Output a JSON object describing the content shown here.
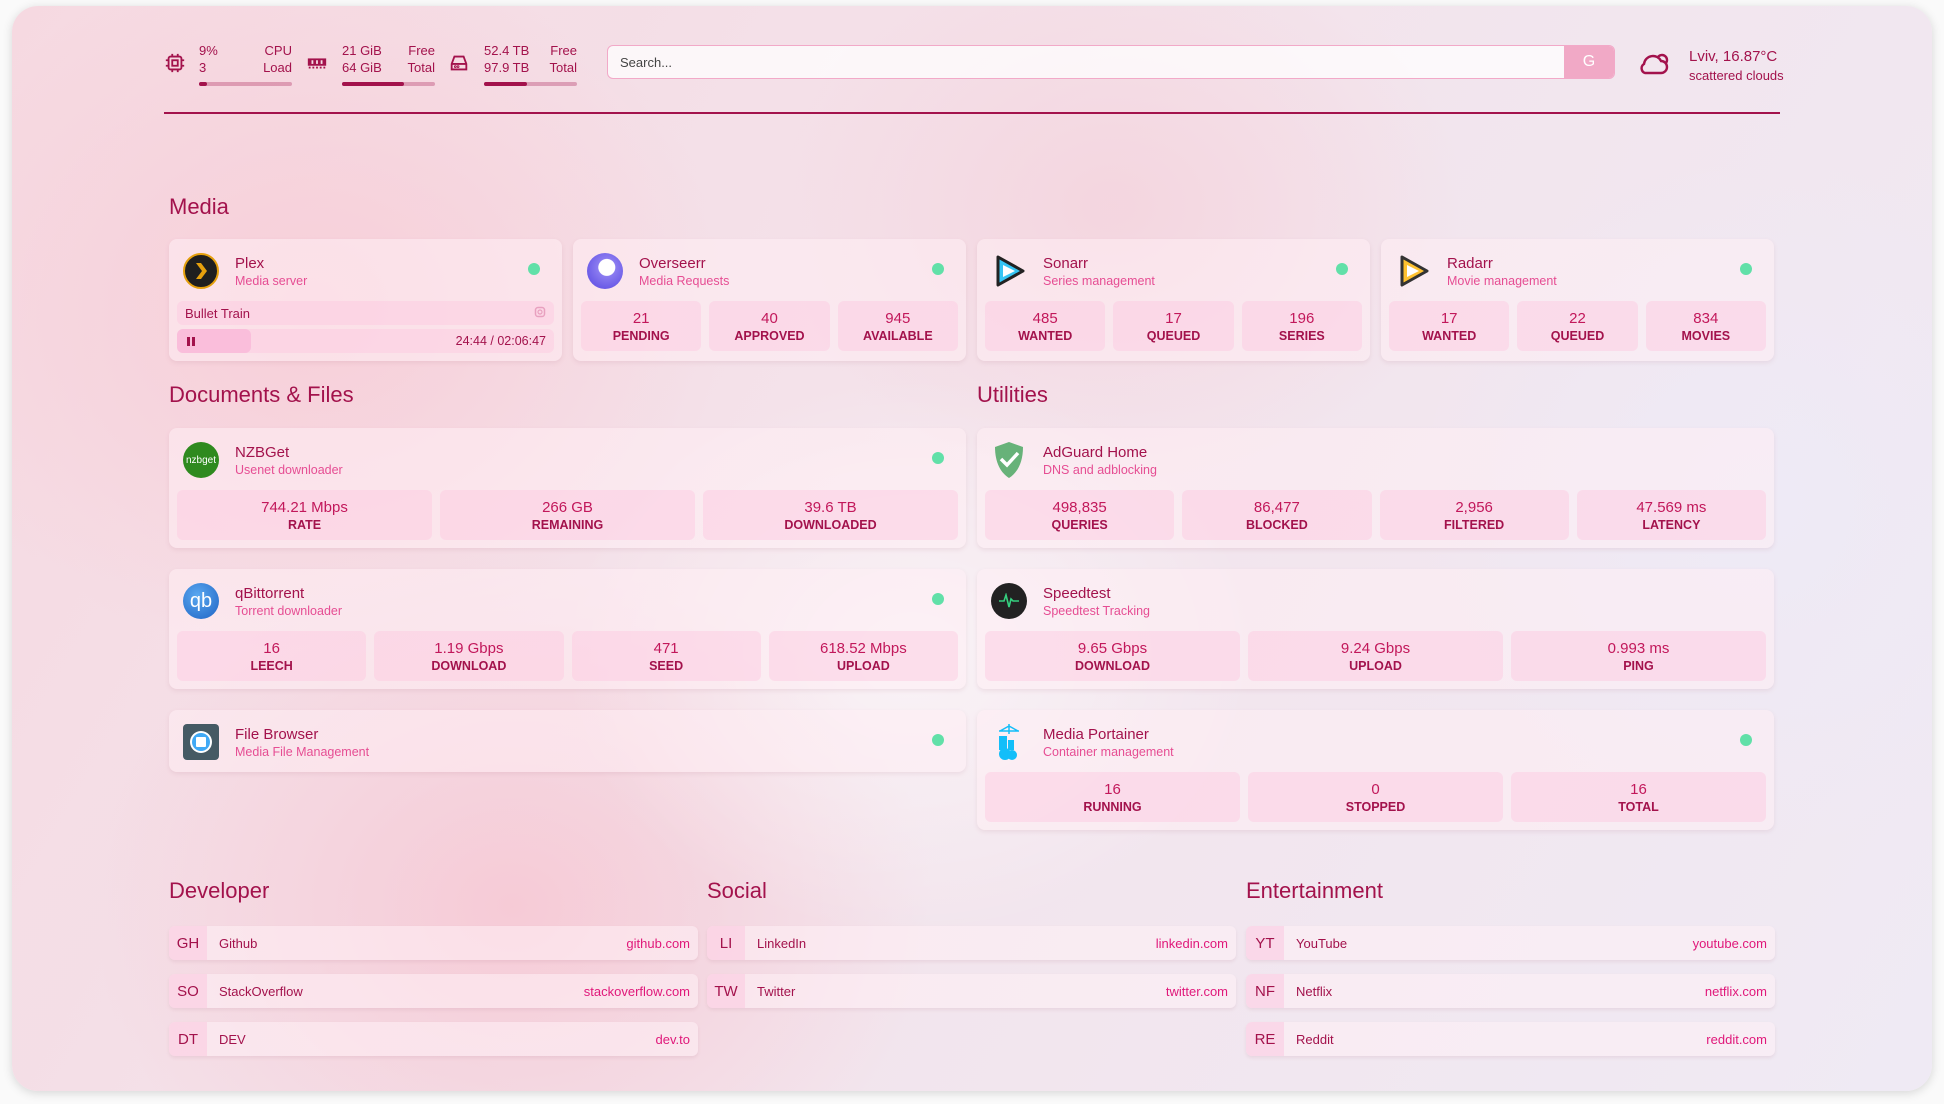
{
  "header": {
    "cpu": {
      "icon": "cpu-icon",
      "value": "9%",
      "cores": "3",
      "label1": "CPU",
      "label2": "Load",
      "fill": 0.09
    },
    "memory": {
      "icon": "memory-icon",
      "free": "21 GiB",
      "total": "64 GiB",
      "label1": "Free",
      "label2": "Total",
      "fill": 0.67
    },
    "disk": {
      "icon": "disk-icon",
      "free": "52.4 TB",
      "total": "97.9 TB",
      "label1": "Free",
      "label2": "Total",
      "fill": 0.46
    },
    "search": {
      "placeholder": "Search...",
      "button": "G"
    },
    "weather": {
      "icon": "cloud-sun-icon",
      "location_temp": "Lviv, 16.87°C",
      "condition": "scattered clouds"
    }
  },
  "colors": {
    "primary": "#a3124c",
    "accent": "#e64d93",
    "status_online": "#61e0a8"
  },
  "sections": {
    "media": {
      "title": "Media",
      "cards": [
        {
          "title": "Plex",
          "subtitle": "Media server",
          "icon": "plex-icon",
          "status": "online",
          "now_playing": "Bullet Train",
          "time": "24:44 / 02:06:47",
          "progress": 0.195
        },
        {
          "title": "Overseerr",
          "subtitle": "Media Requests",
          "icon": "overseerr-icon",
          "status": "online",
          "stats": [
            {
              "value": "21",
              "label": "PENDING"
            },
            {
              "value": "40",
              "label": "APPROVED"
            },
            {
              "value": "945",
              "label": "AVAILABLE"
            }
          ]
        },
        {
          "title": "Sonarr",
          "subtitle": "Series management",
          "icon": "sonarr-icon",
          "status": "online",
          "stats": [
            {
              "value": "485",
              "label": "WANTED"
            },
            {
              "value": "17",
              "label": "QUEUED"
            },
            {
              "value": "196",
              "label": "SERIES"
            }
          ]
        },
        {
          "title": "Radarr",
          "subtitle": "Movie management",
          "icon": "radarr-icon",
          "status": "online",
          "stats": [
            {
              "value": "17",
              "label": "WANTED"
            },
            {
              "value": "22",
              "label": "QUEUED"
            },
            {
              "value": "834",
              "label": "MOVIES"
            }
          ]
        }
      ]
    },
    "documents": {
      "title": "Documents & Files",
      "cards": [
        {
          "title": "NZBGet",
          "subtitle": "Usenet downloader",
          "icon": "nzbget-icon",
          "icon_text": "nzbget",
          "status": "online",
          "stats": [
            {
              "value": "744.21 Mbps",
              "label": "RATE"
            },
            {
              "value": "266 GB",
              "label": "REMAINING"
            },
            {
              "value": "39.6 TB",
              "label": "DOWNLOADED"
            }
          ]
        },
        {
          "title": "qBittorrent",
          "subtitle": "Torrent downloader",
          "icon": "qbittorrent-icon",
          "icon_text": "qb",
          "status": "online",
          "stats": [
            {
              "value": "16",
              "label": "LEECH"
            },
            {
              "value": "1.19 Gbps",
              "label": "DOWNLOAD"
            },
            {
              "value": "471",
              "label": "SEED"
            },
            {
              "value": "618.52 Mbps",
              "label": "UPLOAD"
            }
          ]
        },
        {
          "title": "File Browser",
          "subtitle": "Media File Management",
          "icon": "filebrowser-icon",
          "status": "online"
        }
      ]
    },
    "utilities": {
      "title": "Utilities",
      "cards": [
        {
          "title": "AdGuard Home",
          "subtitle": "DNS and adblocking",
          "icon": "adguard-shield-icon",
          "stats": [
            {
              "value": "498,835",
              "label": "QUERIES"
            },
            {
              "value": "86,477",
              "label": "BLOCKED"
            },
            {
              "value": "2,956",
              "label": "FILTERED"
            },
            {
              "value": "47.569 ms",
              "label": "LATENCY"
            }
          ]
        },
        {
          "title": "Speedtest",
          "subtitle": "Speedtest Tracking",
          "icon": "speedtest-icon",
          "stats": [
            {
              "value": "9.65 Gbps",
              "label": "DOWNLOAD"
            },
            {
              "value": "9.24 Gbps",
              "label": "UPLOAD"
            },
            {
              "value": "0.993 ms",
              "label": "PING"
            }
          ]
        },
        {
          "title": "Media Portainer",
          "subtitle": "Container management",
          "icon": "portainer-icon",
          "status": "online",
          "stats": [
            {
              "value": "16",
              "label": "RUNNING"
            },
            {
              "value": "0",
              "label": "STOPPED"
            },
            {
              "value": "16",
              "label": "TOTAL"
            }
          ]
        }
      ]
    }
  },
  "bookmarks": [
    {
      "title": "Developer",
      "items": [
        {
          "abbr": "GH",
          "name": "Github",
          "url": "github.com"
        },
        {
          "abbr": "SO",
          "name": "StackOverflow",
          "url": "stackoverflow.com"
        },
        {
          "abbr": "DT",
          "name": "DEV",
          "url": "dev.to"
        }
      ]
    },
    {
      "title": "Social",
      "items": [
        {
          "abbr": "LI",
          "name": "LinkedIn",
          "url": "linkedin.com"
        },
        {
          "abbr": "TW",
          "name": "Twitter",
          "url": "twitter.com"
        }
      ]
    },
    {
      "title": "Entertainment",
      "items": [
        {
          "abbr": "YT",
          "name": "YouTube",
          "url": "youtube.com"
        },
        {
          "abbr": "NF",
          "name": "Netflix",
          "url": "netflix.com"
        },
        {
          "abbr": "RE",
          "name": "Reddit",
          "url": "reddit.com"
        }
      ]
    }
  ]
}
